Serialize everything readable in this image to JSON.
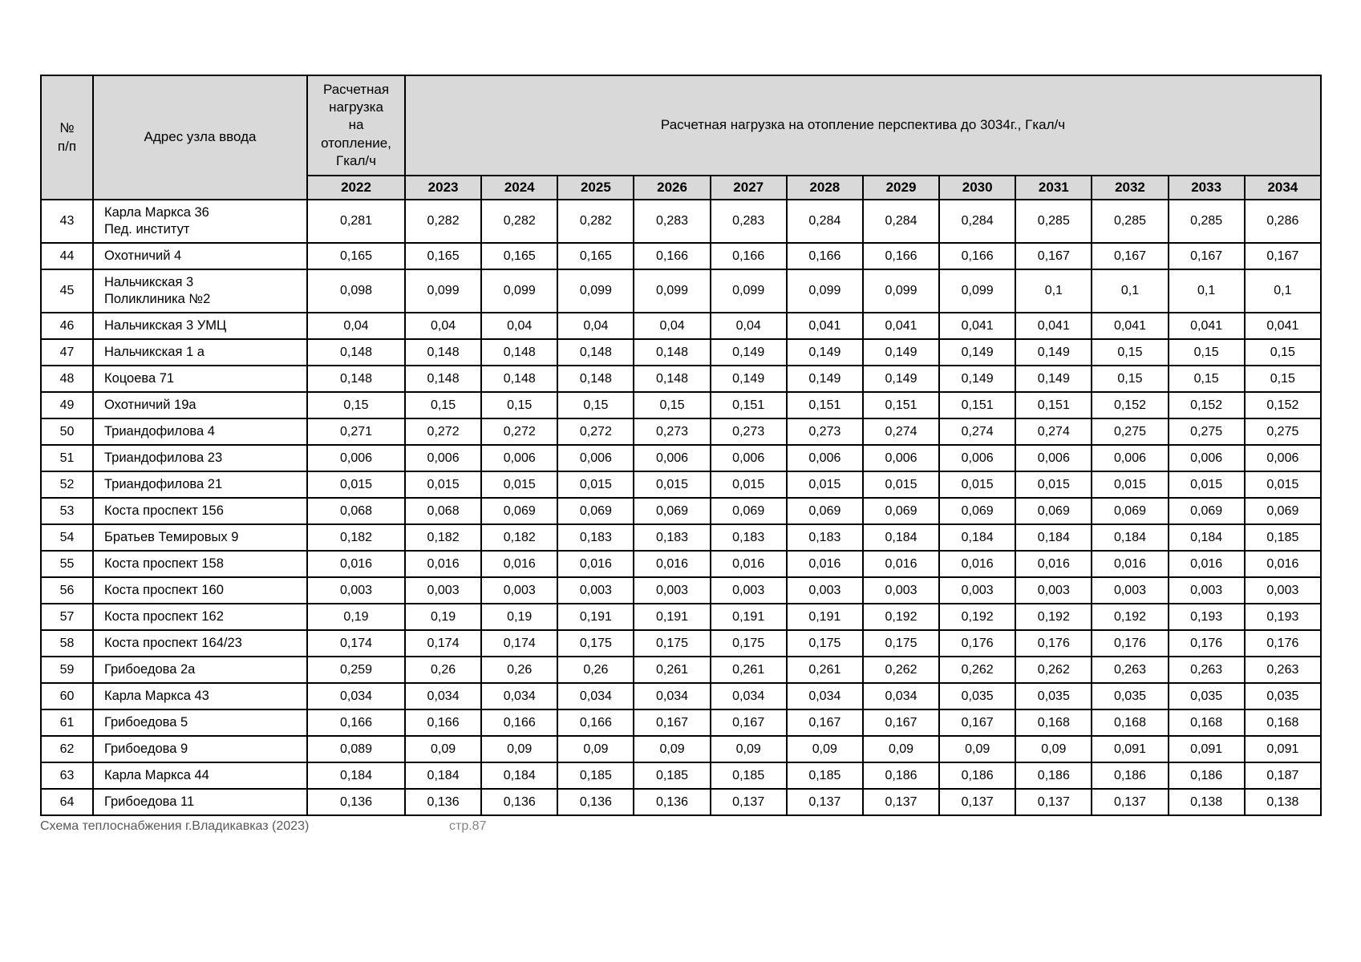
{
  "page": {
    "footer_left": "Схема теплоснабжения г.Владикавказ (2023)",
    "footer_page": "стр.87"
  },
  "colors": {
    "header_bg": "#d9d9d9",
    "border": "#000000",
    "footer_text": "#848484"
  },
  "table": {
    "header": {
      "num": "№\nп/п",
      "address": "Адрес узла ввода",
      "load_2022": "Расчетная\nнагрузка\nна\nотопление,\nГкал/ч",
      "perspective": "Расчетная нагрузка на отопление перспектива до 3034г., Гкал/ч"
    },
    "years": [
      "2022",
      "2023",
      "2024",
      "2025",
      "2026",
      "2027",
      "2028",
      "2029",
      "2030",
      "2031",
      "2032",
      "2033",
      "2034"
    ],
    "rows": [
      {
        "num": "43",
        "address": "Карла Маркса 36\nПед. институт",
        "values": [
          "0,281",
          "0,282",
          "0,282",
          "0,282",
          "0,283",
          "0,283",
          "0,284",
          "0,284",
          "0,284",
          "0,285",
          "0,285",
          "0,285",
          "0,286"
        ]
      },
      {
        "num": "44",
        "address": "Охотничий 4",
        "values": [
          "0,165",
          "0,165",
          "0,165",
          "0,165",
          "0,166",
          "0,166",
          "0,166",
          "0,166",
          "0,166",
          "0,167",
          "0,167",
          "0,167",
          "0,167"
        ]
      },
      {
        "num": "45",
        "address": "Нальчикская 3\nПоликлиника №2",
        "values": [
          "0,098",
          "0,099",
          "0,099",
          "0,099",
          "0,099",
          "0,099",
          "0,099",
          "0,099",
          "0,099",
          "0,1",
          "0,1",
          "0,1",
          "0,1"
        ]
      },
      {
        "num": "46",
        "address": "Нальчикская 3 УМЦ",
        "values": [
          "0,04",
          "0,04",
          "0,04",
          "0,04",
          "0,04",
          "0,04",
          "0,041",
          "0,041",
          "0,041",
          "0,041",
          "0,041",
          "0,041",
          "0,041"
        ]
      },
      {
        "num": "47",
        "address": "Нальчикская 1 а",
        "values": [
          "0,148",
          "0,148",
          "0,148",
          "0,148",
          "0,148",
          "0,149",
          "0,149",
          "0,149",
          "0,149",
          "0,149",
          "0,15",
          "0,15",
          "0,15"
        ]
      },
      {
        "num": "48",
        "address": "Коцоева 71",
        "values": [
          "0,148",
          "0,148",
          "0,148",
          "0,148",
          "0,148",
          "0,149",
          "0,149",
          "0,149",
          "0,149",
          "0,149",
          "0,15",
          "0,15",
          "0,15"
        ]
      },
      {
        "num": "49",
        "address": "Охотничий 19а",
        "values": [
          "0,15",
          "0,15",
          "0,15",
          "0,15",
          "0,15",
          "0,151",
          "0,151",
          "0,151",
          "0,151",
          "0,151",
          "0,152",
          "0,152",
          "0,152"
        ]
      },
      {
        "num": "50",
        "address": "Триандофилова 4",
        "values": [
          "0,271",
          "0,272",
          "0,272",
          "0,272",
          "0,273",
          "0,273",
          "0,273",
          "0,274",
          "0,274",
          "0,274",
          "0,275",
          "0,275",
          "0,275"
        ]
      },
      {
        "num": "51",
        "address": "Триандофилова 23",
        "values": [
          "0,006",
          "0,006",
          "0,006",
          "0,006",
          "0,006",
          "0,006",
          "0,006",
          "0,006",
          "0,006",
          "0,006",
          "0,006",
          "0,006",
          "0,006"
        ]
      },
      {
        "num": "52",
        "address": "Триандофилова 21",
        "values": [
          "0,015",
          "0,015",
          "0,015",
          "0,015",
          "0,015",
          "0,015",
          "0,015",
          "0,015",
          "0,015",
          "0,015",
          "0,015",
          "0,015",
          "0,015"
        ]
      },
      {
        "num": "53",
        "address": "Коста проспект 156",
        "values": [
          "0,068",
          "0,068",
          "0,069",
          "0,069",
          "0,069",
          "0,069",
          "0,069",
          "0,069",
          "0,069",
          "0,069",
          "0,069",
          "0,069",
          "0,069"
        ]
      },
      {
        "num": "54",
        "address": "Братьев Темировых 9",
        "values": [
          "0,182",
          "0,182",
          "0,182",
          "0,183",
          "0,183",
          "0,183",
          "0,183",
          "0,184",
          "0,184",
          "0,184",
          "0,184",
          "0,184",
          "0,185"
        ]
      },
      {
        "num": "55",
        "address": "Коста проспект 158",
        "values": [
          "0,016",
          "0,016",
          "0,016",
          "0,016",
          "0,016",
          "0,016",
          "0,016",
          "0,016",
          "0,016",
          "0,016",
          "0,016",
          "0,016",
          "0,016"
        ]
      },
      {
        "num": "56",
        "address": "Коста проспект 160",
        "values": [
          "0,003",
          "0,003",
          "0,003",
          "0,003",
          "0,003",
          "0,003",
          "0,003",
          "0,003",
          "0,003",
          "0,003",
          "0,003",
          "0,003",
          "0,003"
        ]
      },
      {
        "num": "57",
        "address": "Коста проспект 162",
        "values": [
          "0,19",
          "0,19",
          "0,19",
          "0,191",
          "0,191",
          "0,191",
          "0,191",
          "0,192",
          "0,192",
          "0,192",
          "0,192",
          "0,193",
          "0,193"
        ]
      },
      {
        "num": "58",
        "address": "Коста проспект 164/23",
        "values": [
          "0,174",
          "0,174",
          "0,174",
          "0,175",
          "0,175",
          "0,175",
          "0,175",
          "0,175",
          "0,176",
          "0,176",
          "0,176",
          "0,176",
          "0,176"
        ]
      },
      {
        "num": "59",
        "address": "Грибоедова 2а",
        "values": [
          "0,259",
          "0,26",
          "0,26",
          "0,26",
          "0,261",
          "0,261",
          "0,261",
          "0,262",
          "0,262",
          "0,262",
          "0,263",
          "0,263",
          "0,263"
        ]
      },
      {
        "num": "60",
        "address": "Карла Маркса 43",
        "values": [
          "0,034",
          "0,034",
          "0,034",
          "0,034",
          "0,034",
          "0,034",
          "0,034",
          "0,034",
          "0,035",
          "0,035",
          "0,035",
          "0,035",
          "0,035"
        ]
      },
      {
        "num": "61",
        "address": "Грибоедова 5",
        "values": [
          "0,166",
          "0,166",
          "0,166",
          "0,166",
          "0,167",
          "0,167",
          "0,167",
          "0,167",
          "0,167",
          "0,168",
          "0,168",
          "0,168",
          "0,168"
        ]
      },
      {
        "num": "62",
        "address": "Грибоедова 9",
        "values": [
          "0,089",
          "0,09",
          "0,09",
          "0,09",
          "0,09",
          "0,09",
          "0,09",
          "0,09",
          "0,09",
          "0,09",
          "0,091",
          "0,091",
          "0,091"
        ]
      },
      {
        "num": "63",
        "address": "Карла Маркса 44",
        "values": [
          "0,184",
          "0,184",
          "0,184",
          "0,185",
          "0,185",
          "0,185",
          "0,185",
          "0,186",
          "0,186",
          "0,186",
          "0,186",
          "0,186",
          "0,187"
        ]
      },
      {
        "num": "64",
        "address": "Грибоедова 11",
        "values": [
          "0,136",
          "0,136",
          "0,136",
          "0,136",
          "0,136",
          "0,137",
          "0,137",
          "0,137",
          "0,137",
          "0,137",
          "0,137",
          "0,138",
          "0,138"
        ]
      }
    ]
  }
}
